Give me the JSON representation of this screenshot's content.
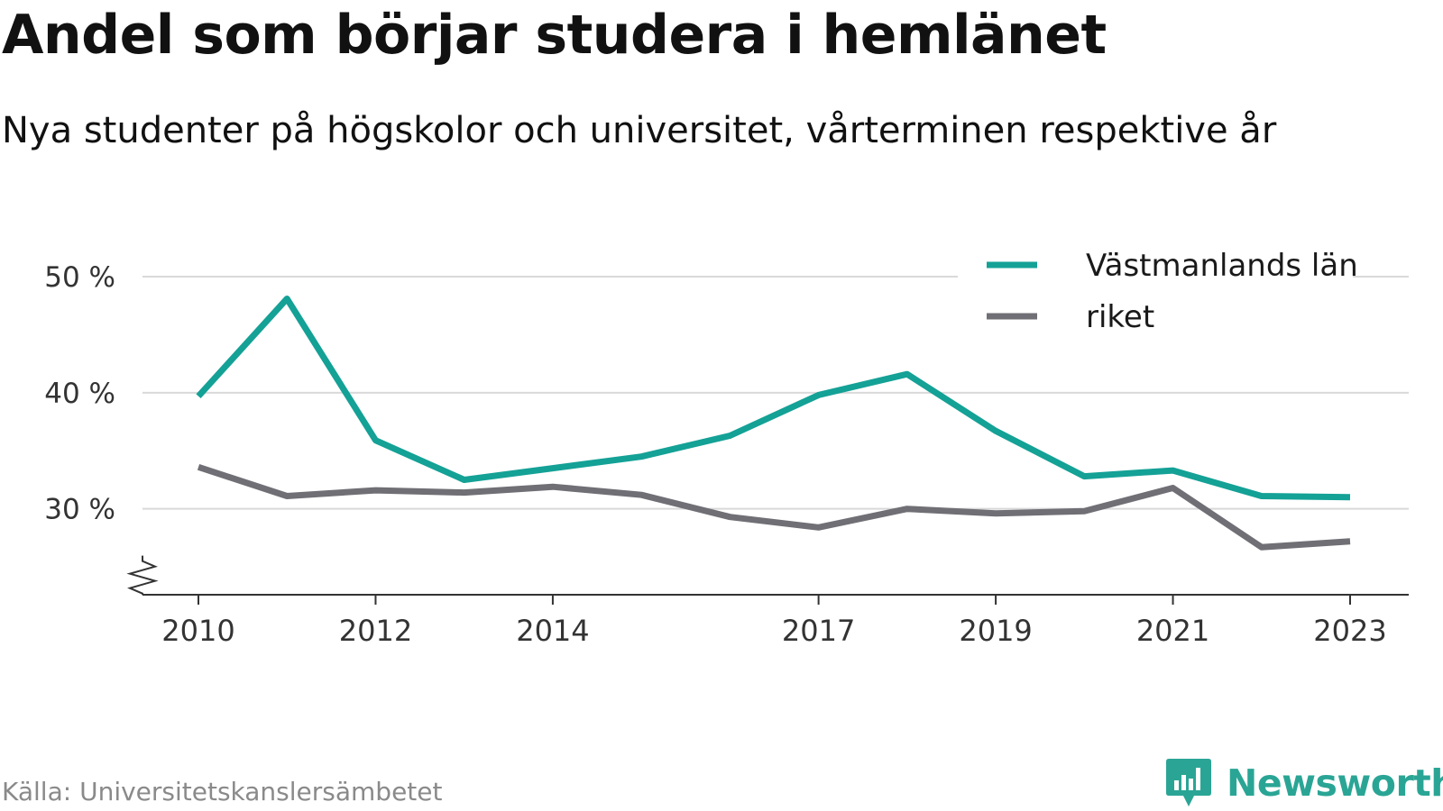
{
  "title": "Andel som börjar studera i hemlänet",
  "subtitle": "Nya studenter på högskolor och universitet, vårterminen respektive år",
  "source": "Källa: Universitetskanslersämbetet",
  "brand": {
    "name": "Newsworthy",
    "icon": "newsworthy-logo-icon",
    "color": "#2aa595"
  },
  "chart_data": {
    "type": "line",
    "x": [
      2010,
      2011,
      2012,
      2013,
      2014,
      2015,
      2016,
      2017,
      2018,
      2019,
      2020,
      2021,
      2022,
      2023
    ],
    "x_ticks": [
      2010,
      2012,
      2014,
      2017,
      2019,
      2021,
      2023
    ],
    "y_ticks": [
      30,
      40,
      50
    ],
    "y_tick_labels": [
      "30 %",
      "40 %",
      "50 %"
    ],
    "ylim": [
      22.6,
      50
    ],
    "y_axis_break": true,
    "grid": true,
    "legend_position": "top-right",
    "series": [
      {
        "name": "Västmanlands län",
        "color": "#14a196",
        "values": [
          39.7,
          48.1,
          35.9,
          32.5,
          33.5,
          34.5,
          36.3,
          39.8,
          41.6,
          36.7,
          32.8,
          33.3,
          31.1,
          31.0
        ]
      },
      {
        "name": "riket",
        "color": "#6f6f75",
        "values": [
          33.6,
          31.1,
          31.6,
          31.4,
          31.9,
          31.2,
          29.3,
          28.4,
          30.0,
          29.6,
          29.8,
          31.8,
          26.7,
          27.2
        ]
      }
    ]
  }
}
